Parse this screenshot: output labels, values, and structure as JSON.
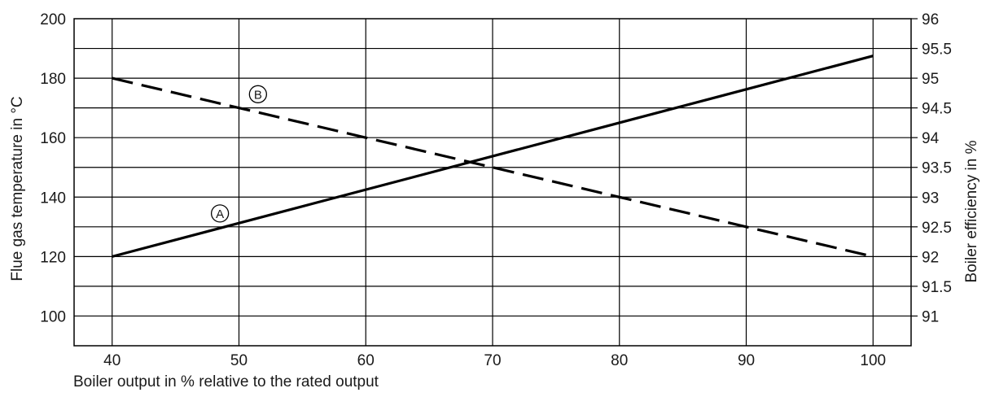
{
  "chart_data": {
    "type": "line",
    "xlabel": "Boiler output in % relative to the rated output",
    "ylabel_left": "Flue gas temperature in °C",
    "ylabel_right": "Boiler efficiency in %",
    "xlim": [
      37,
      103
    ],
    "x_ticks": [
      40,
      50,
      60,
      70,
      80,
      90,
      100
    ],
    "ylim_left": [
      90,
      200
    ],
    "y_ticks_left": [
      100,
      120,
      140,
      160,
      180,
      200
    ],
    "ylim_right": [
      90.5,
      96
    ],
    "y_ticks_right": [
      91,
      91.5,
      92,
      92.5,
      93,
      93.5,
      94,
      94.5,
      95,
      95.5,
      96
    ],
    "grid": true,
    "series": [
      {
        "name": "A",
        "axis": "left",
        "style": "solid",
        "color": "#000000",
        "x": [
          40,
          100
        ],
        "y": [
          120,
          187.5
        ]
      },
      {
        "name": "B",
        "axis": "right",
        "style": "dashed",
        "color": "#000000",
        "x": [
          40,
          100
        ],
        "y": [
          95,
          92
        ]
      }
    ],
    "annotations": [
      {
        "text": "A",
        "series": "A",
        "x": 48.5,
        "y": 134.5,
        "axis": "left"
      },
      {
        "text": "B",
        "series": "B",
        "x": 51.5,
        "y": 94.73,
        "axis": "right"
      }
    ]
  }
}
